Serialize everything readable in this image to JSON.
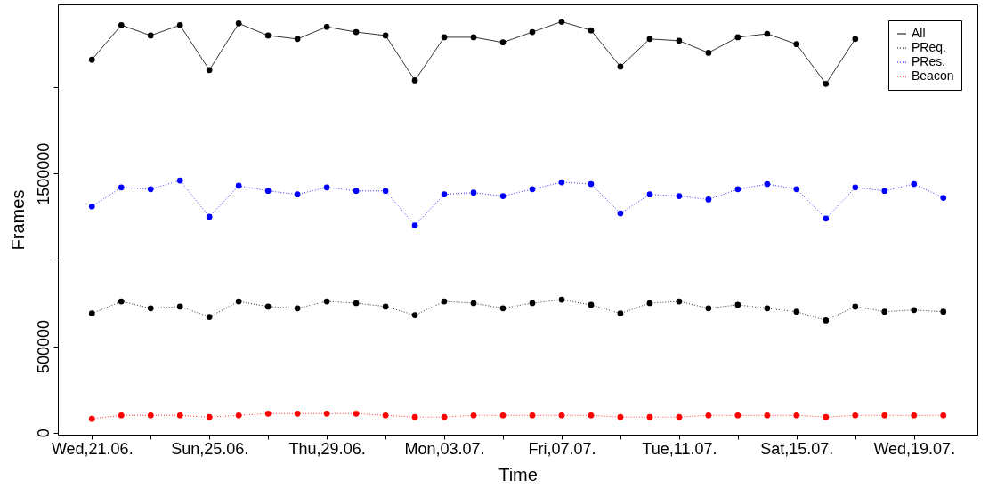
{
  "chart_data": {
    "type": "line",
    "xlabel": "Time",
    "ylabel": "Frames",
    "categories": [
      "Wed,21.06.",
      null,
      null,
      null,
      "Sun,25.06.",
      null,
      null,
      null,
      "Thu,29.06.",
      null,
      null,
      null,
      "Mon,03.07.",
      null,
      null,
      null,
      "Fri,07.07.",
      null,
      null,
      null,
      "Tue,11.07.",
      null,
      null,
      null,
      "Sat,15.07.",
      null,
      null,
      null,
      "Wed,19.07.",
      null
    ],
    "series": [
      {
        "name": "All",
        "color": "#000000",
        "line_style": "solid",
        "values": [
          2160000,
          2360000,
          2300000,
          2360000,
          2100000,
          2370000,
          2300000,
          2280000,
          2350000,
          2320000,
          2300000,
          2040000,
          2290000,
          2290000,
          2260000,
          2320000,
          2380000,
          2330000,
          2120000,
          2280000,
          2270000,
          2200000,
          2290000,
          2310000,
          2250000,
          2020000,
          2280000,
          null,
          null,
          null
        ]
      },
      {
        "name": "PReq.",
        "color": "#000000",
        "line_style": "dotted",
        "values": [
          690000,
          760000,
          720000,
          730000,
          670000,
          760000,
          730000,
          720000,
          760000,
          750000,
          730000,
          680000,
          760000,
          750000,
          720000,
          750000,
          770000,
          740000,
          690000,
          750000,
          760000,
          720000,
          740000,
          720000,
          700000,
          650000,
          730000,
          700000,
          710000,
          700000
        ]
      },
      {
        "name": "PRes.",
        "color": "#0000ff",
        "line_style": "dotted",
        "values": [
          1310000,
          1420000,
          1410000,
          1460000,
          1250000,
          1430000,
          1400000,
          1380000,
          1420000,
          1400000,
          1400000,
          1200000,
          1380000,
          1390000,
          1370000,
          1410000,
          1450000,
          1440000,
          1270000,
          1380000,
          1370000,
          1350000,
          1410000,
          1440000,
          1410000,
          1240000,
          1420000,
          1400000,
          1440000,
          1360000
        ]
      },
      {
        "name": "Beacon",
        "color": "#ff0000",
        "line_style": "dotted",
        "values": [
          80000,
          100000,
          100000,
          100000,
          90000,
          100000,
          110000,
          110000,
          110000,
          110000,
          100000,
          90000,
          90000,
          100000,
          100000,
          100000,
          100000,
          100000,
          90000,
          90000,
          90000,
          100000,
          100000,
          100000,
          100000,
          90000,
          100000,
          100000,
          100000,
          100000
        ]
      }
    ],
    "ylim": [
      -12000,
      2480000
    ],
    "yticks": [
      0,
      500000,
      {
        "value": 1000000,
        "label": null
      },
      1500000,
      {
        "value": 2000000,
        "label": null
      }
    ],
    "grid": false,
    "legend": "top right",
    "marker": "circle"
  }
}
